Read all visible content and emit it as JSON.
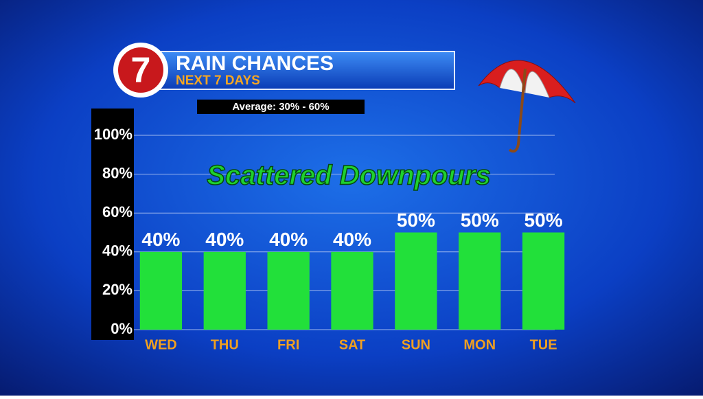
{
  "chart_data": {
    "type": "bar",
    "logo": "7",
    "title": "RAIN CHANCES",
    "subtitle": "NEXT 7 DAYS",
    "note": "Average: 30% - 60%",
    "annotation": "Scattered Downpours",
    "categories": [
      "WED",
      "THU",
      "FRI",
      "SAT",
      "SUN",
      "MON",
      "TUE"
    ],
    "values": [
      40,
      40,
      40,
      40,
      50,
      50,
      50
    ],
    "value_labels": [
      "40%",
      "40%",
      "40%",
      "40%",
      "50%",
      "50%",
      "50%"
    ],
    "color": "#22e03a",
    "ylim": [
      0,
      100
    ],
    "yticks": [
      {
        "value": 0,
        "label": "0%"
      },
      {
        "value": 20,
        "label": "20%"
      },
      {
        "value": 40,
        "label": "40%"
      },
      {
        "value": 60,
        "label": "60%"
      },
      {
        "value": 80,
        "label": "80%"
      },
      {
        "value": 100,
        "label": "100%"
      }
    ],
    "grid": true
  }
}
